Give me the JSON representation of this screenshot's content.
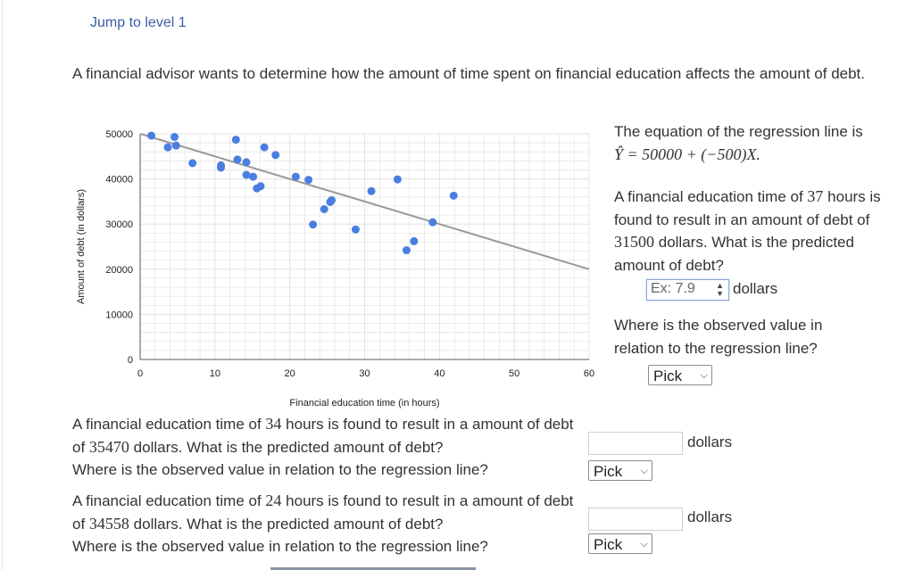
{
  "jump_link": "Jump to level 1",
  "intro": "A financial advisor wants to determine how the amount of time spent on financial education affects the amount of debt.",
  "chart_data": {
    "type": "scatter",
    "xlabel": "Financial education time (in hours)",
    "ylabel": "Amount of debt (in dollars)",
    "xlim": [
      0,
      60
    ],
    "ylim": [
      0,
      50000
    ],
    "x_ticks": [
      "0",
      "10",
      "20",
      "30",
      "40",
      "50",
      "60"
    ],
    "y_ticks": [
      "0",
      "10000",
      "20000",
      "30000",
      "40000",
      "50000"
    ],
    "regression_line": {
      "intercept": 50000,
      "slope": -500
    },
    "points": [
      {
        "x": 1.5,
        "y": 49600
      },
      {
        "x": 3.7,
        "y": 47000
      },
      {
        "x": 4.6,
        "y": 49300
      },
      {
        "x": 4.8,
        "y": 47400
      },
      {
        "x": 7.0,
        "y": 43500
      },
      {
        "x": 10.8,
        "y": 43000
      },
      {
        "x": 10.8,
        "y": 42500
      },
      {
        "x": 12.8,
        "y": 48700
      },
      {
        "x": 13.0,
        "y": 44300
      },
      {
        "x": 14.2,
        "y": 43700
      },
      {
        "x": 14.2,
        "y": 40900
      },
      {
        "x": 15.1,
        "y": 40500
      },
      {
        "x": 15.6,
        "y": 37900
      },
      {
        "x": 16.1,
        "y": 38400
      },
      {
        "x": 16.6,
        "y": 47000
      },
      {
        "x": 18.1,
        "y": 45300
      },
      {
        "x": 20.8,
        "y": 40500
      },
      {
        "x": 22.5,
        "y": 39800
      },
      {
        "x": 23.1,
        "y": 29900
      },
      {
        "x": 24.6,
        "y": 33300
      },
      {
        "x": 25.4,
        "y": 34900
      },
      {
        "x": 25.6,
        "y": 35300
      },
      {
        "x": 28.8,
        "y": 28800
      },
      {
        "x": 30.9,
        "y": 37300
      },
      {
        "x": 35.6,
        "y": 24200
      },
      {
        "x": 34.4,
        "y": 39900
      },
      {
        "x": 36.6,
        "y": 26200
      },
      {
        "x": 39.1,
        "y": 30400
      },
      {
        "x": 41.9,
        "y": 36300
      }
    ]
  },
  "equation": {
    "intro": "The equation of the regression line is",
    "formula": "Ŷ = 50000 + (−500)X."
  },
  "q1": {
    "pre": "A financial education time of",
    "hours": "37",
    "mid": "hours is found to result in an amount of debt of",
    "debt": "31500",
    "post": "dollars. What is the predicted amount of debt?",
    "input_placeholder": "Ex: 7.9",
    "unit": "dollars",
    "observed_question": "Where is the observed value in relation to the regression line?",
    "pick_label": "Pick"
  },
  "q2": {
    "pre": "A financial education time of",
    "hours": "34",
    "mid": "hours is found to result in a amount of debt of",
    "debt": "35470",
    "post": "dollars. What is the predicted amount of debt?",
    "unit": "dollars",
    "observed_question": "Where is the observed value in relation to the regression line?",
    "pick_label": "Pick"
  },
  "q3": {
    "pre": "A financial education time of",
    "hours": "24",
    "mid": "hours is found to result in a amount of debt of",
    "debt": "34558",
    "post": "dollars. What is the predicted amount of debt?",
    "unit": "dollars",
    "observed_question": "Where is the observed value in relation to the regression line?",
    "pick_label": "Pick"
  },
  "colors": {
    "point": "#4a7fe0",
    "line": "#9a9a9a",
    "grid": "#e3e3e3",
    "link": "#3a5ea8"
  }
}
